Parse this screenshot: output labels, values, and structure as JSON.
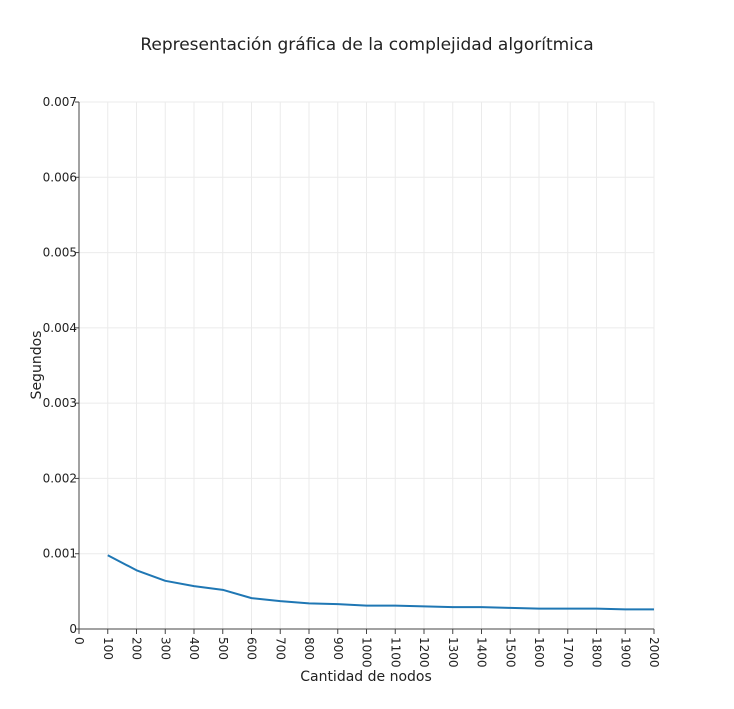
{
  "chart_data": {
    "type": "line",
    "title": "Representación gráfica de la complejidad algorítmica",
    "xlabel": "Cantidad de nodos",
    "ylabel": "Segundos",
    "xlim": [
      0,
      2000
    ],
    "ylim": [
      0,
      0.007
    ],
    "x_ticks": [
      "0",
      "100",
      "200",
      "300",
      "400",
      "500",
      "600",
      "700",
      "800",
      "900",
      "1000",
      "1100",
      "1200",
      "1300",
      "1400",
      "1500",
      "1600",
      "1700",
      "1800",
      "1900",
      "2000"
    ],
    "y_ticks": [
      "0",
      "0.001",
      "0.002",
      "0.003",
      "0.004",
      "0.005",
      "0.006",
      "0.007"
    ],
    "grid": true,
    "color": "#1f77b4",
    "x": [
      100,
      200,
      300,
      400,
      500,
      600,
      700,
      800,
      900,
      1000,
      1100,
      1200,
      1300,
      1400,
      1500,
      1600,
      1700,
      1800,
      1900,
      2000
    ],
    "values": [
      0.00098,
      0.00078,
      0.00064,
      0.00057,
      0.00052,
      0.00041,
      0.00037,
      0.00034,
      0.00033,
      0.00031,
      0.00031,
      0.0003,
      0.00029,
      0.00029,
      0.00028,
      0.00027,
      0.00027,
      0.00027,
      0.00026,
      0.00026
    ]
  }
}
